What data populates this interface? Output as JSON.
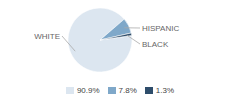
{
  "chart_data": {
    "type": "pie",
    "categories": [
      "WHITE",
      "HISPANIC",
      "BLACK"
    ],
    "values": [
      90.9,
      7.8,
      1.3
    ],
    "value_labels": [
      "90.9%",
      "7.8%",
      "1.3%"
    ],
    "colors": [
      "#dce6f0",
      "#7fa8c9",
      "#2e4d6b"
    ],
    "legend": "bottom"
  }
}
